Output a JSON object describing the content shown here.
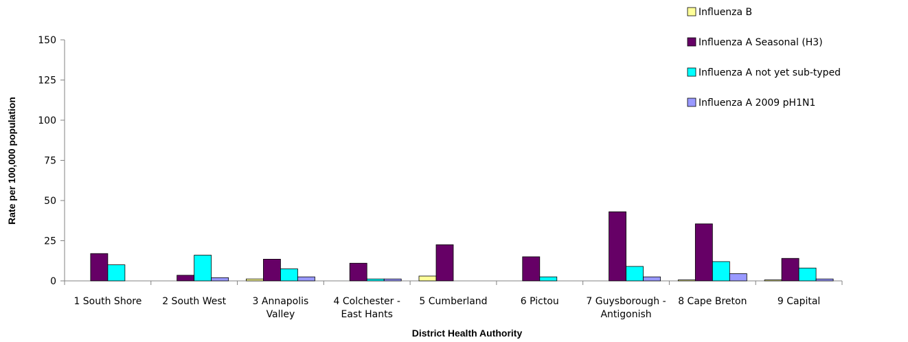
{
  "chart_data": {
    "type": "bar",
    "title": "",
    "xlabel": "District Health Authority",
    "ylabel": "Rate per 100,000 population",
    "ylim": [
      0,
      150
    ],
    "yticks": [
      0,
      25,
      50,
      75,
      100,
      125,
      150
    ],
    "grid": false,
    "legend_position": "top-right",
    "categories": [
      [
        "1 South Shore"
      ],
      [
        "2 South West"
      ],
      [
        "3 Annapolis",
        "Valley"
      ],
      [
        "4 Colchester -",
        "East Hants"
      ],
      [
        "5 Cumberland"
      ],
      [
        "6 Pictou"
      ],
      [
        "7 Guysborough -",
        "Antigonish"
      ],
      [
        "8 Cape Breton"
      ],
      [
        "9 Capital"
      ]
    ],
    "series": [
      {
        "name": "Influenza B",
        "color": "#FFFF99",
        "values": [
          0,
          0,
          1.2,
          0,
          3,
          0,
          0,
          0.6,
          0.6
        ]
      },
      {
        "name": "Influenza A Seasonal (H3)",
        "color": "#660066",
        "values": [
          17,
          3.5,
          13.5,
          11,
          22.5,
          15,
          43,
          35.5,
          14
        ]
      },
      {
        "name": "Influenza A not yet sub-typed",
        "color": "#00FFFF",
        "values": [
          10,
          16,
          7.5,
          1.2,
          0,
          2.5,
          9,
          12,
          8
        ]
      },
      {
        "name": "Influenza A 2009 pH1N1",
        "color": "#9999FF",
        "values": [
          0,
          2,
          2.5,
          1.2,
          0,
          0,
          2.5,
          4.5,
          1.2
        ]
      }
    ]
  }
}
